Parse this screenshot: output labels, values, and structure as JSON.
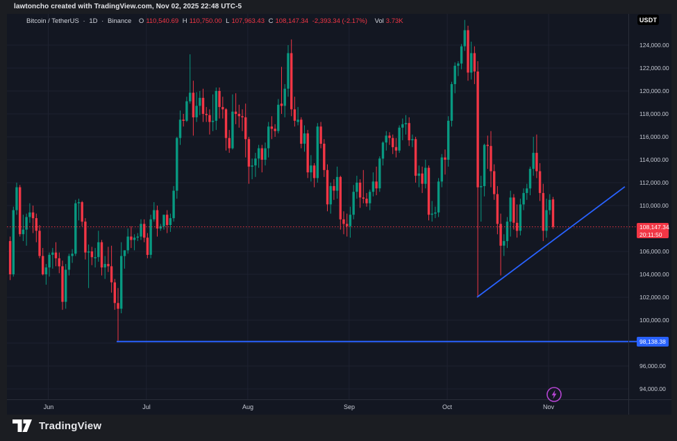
{
  "header": {
    "attribution": "lawtoncho created with TradingView.com, Nov 02, 2025 22:48 UTC-5"
  },
  "legend": {
    "symbol": "Bitcoin / TetherUS",
    "sep1": "·",
    "interval": "1D",
    "sep2": "·",
    "exchange": "Binance",
    "open_label": "O",
    "open": "110,540.69",
    "high_label": "H",
    "high": "110,750.00",
    "low_label": "L",
    "low": "107,963.43",
    "close_label": "C",
    "close": "108,147.34",
    "change": "-2,393.34 (-2.17%)",
    "volume_label": "Vol",
    "volume": "3.73K"
  },
  "currency_button": {
    "label": "USDT"
  },
  "price_scale": {
    "labels": [
      {
        "text": "124,000.00",
        "price": 124000
      },
      {
        "text": "122,000.00",
        "price": 122000
      },
      {
        "text": "120,000.00",
        "price": 120000
      },
      {
        "text": "118,000.00",
        "price": 118000
      },
      {
        "text": "116,000.00",
        "price": 116000
      },
      {
        "text": "114,000.00",
        "price": 114000
      },
      {
        "text": "112,000.00",
        "price": 112000
      },
      {
        "text": "110,000.00",
        "price": 110000
      },
      {
        "text": "108,000.00",
        "price": 108000
      },
      {
        "text": "106,000.00",
        "price": 106000
      },
      {
        "text": "104,000.00",
        "price": 104000
      },
      {
        "text": "102,000.00",
        "price": 102000
      },
      {
        "text": "100,000.00",
        "price": 100000
      },
      {
        "text": "98,000.00",
        "price": 98000
      },
      {
        "text": "96,000.00",
        "price": 96000
      },
      {
        "text": "94,000.00",
        "price": 94000
      }
    ],
    "current": {
      "price": "108,147.34",
      "countdown": "20:11:50"
    },
    "level_label": "98,138.38"
  },
  "time_scale": {
    "months": [
      {
        "label": "Jun",
        "index": 12
      },
      {
        "label": "Jul",
        "index": 42
      },
      {
        "label": "Aug",
        "index": 73
      },
      {
        "label": "Sep",
        "index": 104
      },
      {
        "label": "Oct",
        "index": 134
      },
      {
        "label": "Nov",
        "index": 165
      }
    ]
  },
  "footer": {
    "brand": "TradingView",
    "logo_icon": "tradingview-mark"
  },
  "marker": {
    "icon": "lightning-icon"
  },
  "colors": {
    "up": "#089981",
    "down": "#f23645",
    "line_blue": "#2962ff",
    "last_price_red": "#f23645",
    "marker_purple": "#b545d3",
    "grid": "#1e2230",
    "axis_border": "#2a2e39",
    "chart_bg": "#131722",
    "frame_bg": "#1b1d22"
  },
  "chart_data": {
    "type": "candlestick",
    "title": "Bitcoin / TetherUS, 1D, Binance",
    "symbol": "BTC/USDT",
    "interval": "1D",
    "start_date": "2025-05-20",
    "end_date": "2025-11-02",
    "price_axis": {
      "visible_min": 94000,
      "visible_max": 124000,
      "tick_step": 2000
    },
    "last": {
      "open": 110540.69,
      "high": 110750.0,
      "low": 107963.43,
      "close": 108147.34,
      "change": -2393.34,
      "change_pct": -2.17,
      "volume": "3.73K"
    },
    "overlays": {
      "horizontal_line": {
        "price": 98138.38,
        "from_index": 32.9,
        "to_index": 189.4
      },
      "trend_line": {
        "from": {
          "index": 143.1,
          "price": 102000
        },
        "to": {
          "index": 188.3,
          "price": 111650
        }
      },
      "last_price_line": {
        "price": 108147.34,
        "style": "dotted"
      }
    },
    "marker": {
      "icon": "lightning",
      "index": 166.7
    },
    "ohlc": [
      [
        106900,
        107300,
        103500,
        104000
      ],
      [
        104000,
        109900,
        103800,
        109600
      ],
      [
        109600,
        112000,
        109200,
        111600
      ],
      [
        111600,
        111800,
        107300,
        107500
      ],
      [
        107500,
        109200,
        106900,
        107900
      ],
      [
        107900,
        109300,
        106500,
        109000
      ],
      [
        109000,
        110200,
        108500,
        109400
      ],
      [
        109400,
        110000,
        107600,
        108900
      ],
      [
        108900,
        109300,
        106800,
        107800
      ],
      [
        107800,
        108300,
        105400,
        105600
      ],
      [
        105600,
        106300,
        103900,
        104000
      ],
      [
        104000,
        104900,
        103100,
        104600
      ],
      [
        104600,
        105900,
        103800,
        105700
      ],
      [
        105700,
        106300,
        104500,
        105900
      ],
      [
        105900,
        106800,
        104700,
        105400
      ],
      [
        105400,
        105900,
        104100,
        104700
      ],
      [
        104700,
        105200,
        100900,
        101600
      ],
      [
        101600,
        104900,
        101000,
        104400
      ],
      [
        104400,
        105800,
        103900,
        105600
      ],
      [
        105600,
        106200,
        105000,
        105800
      ],
      [
        105800,
        110500,
        105600,
        110200
      ],
      [
        110200,
        110600,
        108700,
        110300
      ],
      [
        110300,
        110400,
        108200,
        108600
      ],
      [
        108600,
        108900,
        105300,
        105900
      ],
      [
        105900,
        106600,
        102800,
        106000
      ],
      [
        106000,
        106400,
        104800,
        105500
      ],
      [
        105400,
        106300,
        104600,
        105500
      ],
      [
        105500,
        107800,
        105100,
        106800
      ],
      [
        106800,
        107000,
        103900,
        104600
      ],
      [
        104600,
        105600,
        103600,
        104900
      ],
      [
        104900,
        106400,
        104200,
        104700
      ],
      [
        104700,
        106500,
        102400,
        103300
      ],
      [
        103300,
        103600,
        100900,
        101500
      ],
      [
        101500,
        102800,
        98200,
        101000
      ],
      [
        101000,
        106800,
        100600,
        105600
      ],
      [
        105600,
        106100,
        104500,
        106100
      ],
      [
        106100,
        108000,
        105800,
        107300
      ],
      [
        107300,
        108200,
        106300,
        107000
      ],
      [
        107000,
        107500,
        106100,
        107200
      ],
      [
        107200,
        107600,
        106900,
        107300
      ],
      [
        107300,
        108800,
        107000,
        108400
      ],
      [
        108400,
        108800,
        106800,
        107200
      ],
      [
        107200,
        107600,
        105400,
        105700
      ],
      [
        105700,
        109200,
        105400,
        108800
      ],
      [
        108800,
        110300,
        108600,
        109600
      ],
      [
        109600,
        110000,
        107300,
        108000
      ],
      [
        108000,
        108400,
        107800,
        108200
      ],
      [
        108200,
        109200,
        107900,
        109200
      ],
      [
        109200,
        109600,
        107600,
        108300
      ],
      [
        108300,
        109300,
        107700,
        108900
      ],
      [
        108900,
        111700,
        108600,
        111300
      ],
      [
        111300,
        116000,
        110600,
        115900
      ],
      [
        115900,
        118300,
        115300,
        117500
      ],
      [
        117500,
        118000,
        116900,
        117400
      ],
      [
        117400,
        119500,
        117300,
        119100
      ],
      [
        119100,
        123200,
        118900,
        119850
      ],
      [
        119850,
        120900,
        116100,
        117700
      ],
      [
        117700,
        119900,
        117300,
        118700
      ],
      [
        118700,
        120000,
        117900,
        119400
      ],
      [
        119400,
        120200,
        117300,
        118000
      ],
      [
        118000,
        118600,
        117300,
        117900
      ],
      [
        117900,
        118400,
        116200,
        117300
      ],
      [
        117300,
        119700,
        116500,
        117400
      ],
      [
        117400,
        120300,
        116600,
        120000
      ],
      [
        120000,
        120300,
        117600,
        118600
      ],
      [
        118600,
        119500,
        117600,
        118400
      ],
      [
        118400,
        118500,
        114800,
        115900
      ],
      [
        115900,
        116600,
        114600,
        115000
      ],
      [
        115000,
        119700,
        114900,
        118200
      ],
      [
        118200,
        119800,
        117100,
        118000
      ],
      [
        118000,
        118800,
        116800,
        117800
      ],
      [
        117800,
        118400,
        116500,
        117700
      ],
      [
        117700,
        118900,
        114200,
        115800
      ],
      [
        115800,
        116000,
        111900,
        113400
      ],
      [
        113400,
        114100,
        112300,
        113500
      ],
      [
        113500,
        114600,
        112500,
        114100
      ],
      [
        114100,
        115300,
        113300,
        115000
      ],
      [
        115000,
        115300,
        112900,
        114000
      ],
      [
        114000,
        115500,
        113500,
        115000
      ],
      [
        115000,
        117300,
        114200,
        116900
      ],
      [
        116900,
        117800,
        115800,
        116700
      ],
      [
        116700,
        117100,
        116000,
        116500
      ],
      [
        116500,
        119300,
        116300,
        118800
      ],
      [
        118900,
        122100,
        118000,
        118700
      ],
      [
        118700,
        120600,
        117700,
        120200
      ],
      [
        120200,
        124000,
        119500,
        123300
      ],
      [
        123300,
        124500,
        117800,
        118400
      ],
      [
        118400,
        119500,
        116900,
        117400
      ],
      [
        117300,
        118600,
        117000,
        117500
      ],
      [
        117500,
        117700,
        115000,
        115400
      ],
      [
        115400,
        117000,
        114700,
        116300
      ],
      [
        116300,
        116600,
        112400,
        112900
      ],
      [
        112900,
        114400,
        112100,
        113500
      ],
      [
        113500,
        113700,
        111600,
        112400
      ],
      [
        112400,
        117200,
        112000,
        116900
      ],
      [
        116900,
        117300,
        115000,
        115400
      ],
      [
        115400,
        115800,
        112500,
        113100
      ],
      [
        113100,
        113600,
        109500,
        110100
      ],
      [
        110100,
        112000,
        109300,
        111700
      ],
      [
        111700,
        112300,
        110500,
        111300
      ],
      [
        111300,
        113400,
        110600,
        112500
      ],
      [
        112500,
        112600,
        107900,
        108800
      ],
      [
        108800,
        109500,
        107500,
        108400
      ],
      [
        108400,
        109300,
        107300,
        108200
      ],
      [
        108200,
        109900,
        107200,
        109200
      ],
      [
        109200,
        111800,
        108800,
        111200
      ],
      [
        111200,
        112600,
        110600,
        112000
      ],
      [
        112000,
        112300,
        109800,
        110700
      ],
      [
        110700,
        113100,
        110200,
        110600
      ],
      [
        110600,
        111100,
        109900,
        110200
      ],
      [
        110200,
        111400,
        109600,
        111200
      ],
      [
        111200,
        112900,
        110800,
        112100
      ],
      [
        112100,
        113400,
        110900,
        111500
      ],
      [
        111500,
        114300,
        111200,
        114100
      ],
      [
        114100,
        115600,
        113500,
        115500
      ],
      [
        115500,
        116500,
        114800,
        116100
      ],
      [
        116100,
        116400,
        115300,
        115900
      ],
      [
        115900,
        116200,
        114500,
        115100
      ],
      [
        115100,
        115900,
        114200,
        114800
      ],
      [
        114800,
        117000,
        114600,
        116800
      ],
      [
        116800,
        117600,
        115700,
        117100
      ],
      [
        117100,
        117900,
        116200,
        117200
      ],
      [
        117200,
        117700,
        115200,
        115700
      ],
      [
        115700,
        116200,
        115100,
        115800
      ],
      [
        115800,
        116000,
        112000,
        112600
      ],
      [
        112600,
        113500,
        111600,
        112800
      ],
      [
        112800,
        113400,
        111100,
        111900
      ],
      [
        111900,
        114000,
        111500,
        113300
      ],
      [
        113300,
        113500,
        108700,
        109200
      ],
      [
        109200,
        110400,
        108600,
        109300
      ],
      [
        109300,
        109900,
        108900,
        109400
      ],
      [
        109400,
        112400,
        109000,
        112100
      ],
      [
        112100,
        114500,
        111600,
        114200
      ],
      [
        114200,
        114900,
        112700,
        114000
      ],
      [
        114000,
        117800,
        113400,
        117400
      ],
      [
        117400,
        120800,
        116900,
        120600
      ],
      [
        120600,
        122500,
        119800,
        122200
      ],
      [
        122200,
        122600,
        121300,
        122400
      ],
      [
        122400,
        124100,
        121900,
        123900
      ],
      [
        123900,
        126200,
        123500,
        125300
      ],
      [
        125300,
        125700,
        120900,
        121600
      ],
      [
        121600,
        124300,
        121000,
        123300
      ],
      [
        123300,
        123900,
        120600,
        121700
      ],
      [
        121700,
        122600,
        102000,
        111600
      ],
      [
        111600,
        112600,
        108600,
        111700
      ],
      [
        111700,
        115400,
        110800,
        115300
      ],
      [
        115300,
        116100,
        113200,
        115200
      ],
      [
        115200,
        116500,
        111600,
        113000
      ],
      [
        113000,
        113600,
        110500,
        111000
      ],
      [
        111000,
        111700,
        107500,
        108400
      ],
      [
        108400,
        109300,
        103900,
        106500
      ],
      [
        106500,
        107500,
        105600,
        106900
      ],
      [
        106900,
        109000,
        106300,
        108600
      ],
      [
        108600,
        111300,
        107300,
        110700
      ],
      [
        110700,
        111000,
        107900,
        108500
      ],
      [
        108500,
        110100,
        107200,
        107800
      ],
      [
        107800,
        110600,
        107400,
        110100
      ],
      [
        110100,
        111500,
        109600,
        111100
      ],
      [
        111100,
        111900,
        110500,
        111500
      ],
      [
        111500,
        113400,
        110900,
        113200
      ],
      [
        113200,
        116000,
        112600,
        114600
      ],
      [
        114600,
        116200,
        112400,
        113000
      ],
      [
        113000,
        113700,
        110400,
        111100
      ],
      [
        111100,
        111900,
        106900,
        107800
      ],
      [
        107800,
        110600,
        107200,
        109600
      ],
      [
        109600,
        111000,
        109200,
        110500
      ],
      [
        110540.69,
        110750,
        107963.43,
        108147.34
      ]
    ]
  }
}
